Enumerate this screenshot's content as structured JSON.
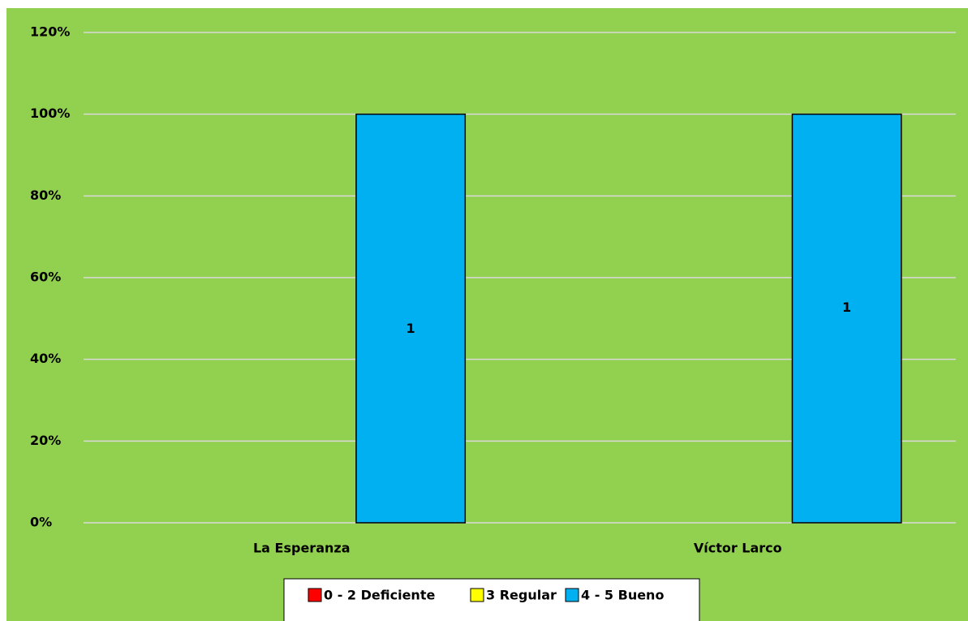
{
  "chart_data": {
    "type": "bar",
    "categories": [
      "La Esperanza",
      "Víctor Larco"
    ],
    "series": [
      {
        "name": "0 - 2 Deficiente",
        "color": "#ff0000",
        "values": [
          0,
          0
        ]
      },
      {
        "name": "3 Regular",
        "color": "#ffff00",
        "values": [
          0,
          0
        ]
      },
      {
        "name": "4 - 5 Bueno",
        "color": "#00b0f0",
        "values": [
          100,
          100
        ]
      }
    ],
    "annotations": [
      "1",
      "1"
    ],
    "ylim": [
      0,
      120
    ],
    "yticks": [
      {
        "value": 0,
        "label": "0%"
      },
      {
        "value": 20,
        "label": "20%"
      },
      {
        "value": 40,
        "label": "40%"
      },
      {
        "value": 60,
        "label": "60%"
      },
      {
        "value": 80,
        "label": "80%"
      },
      {
        "value": 100,
        "label": "100%"
      },
      {
        "value": 120,
        "label": "120%"
      }
    ],
    "grid": true,
    "legend": "bottom"
  }
}
